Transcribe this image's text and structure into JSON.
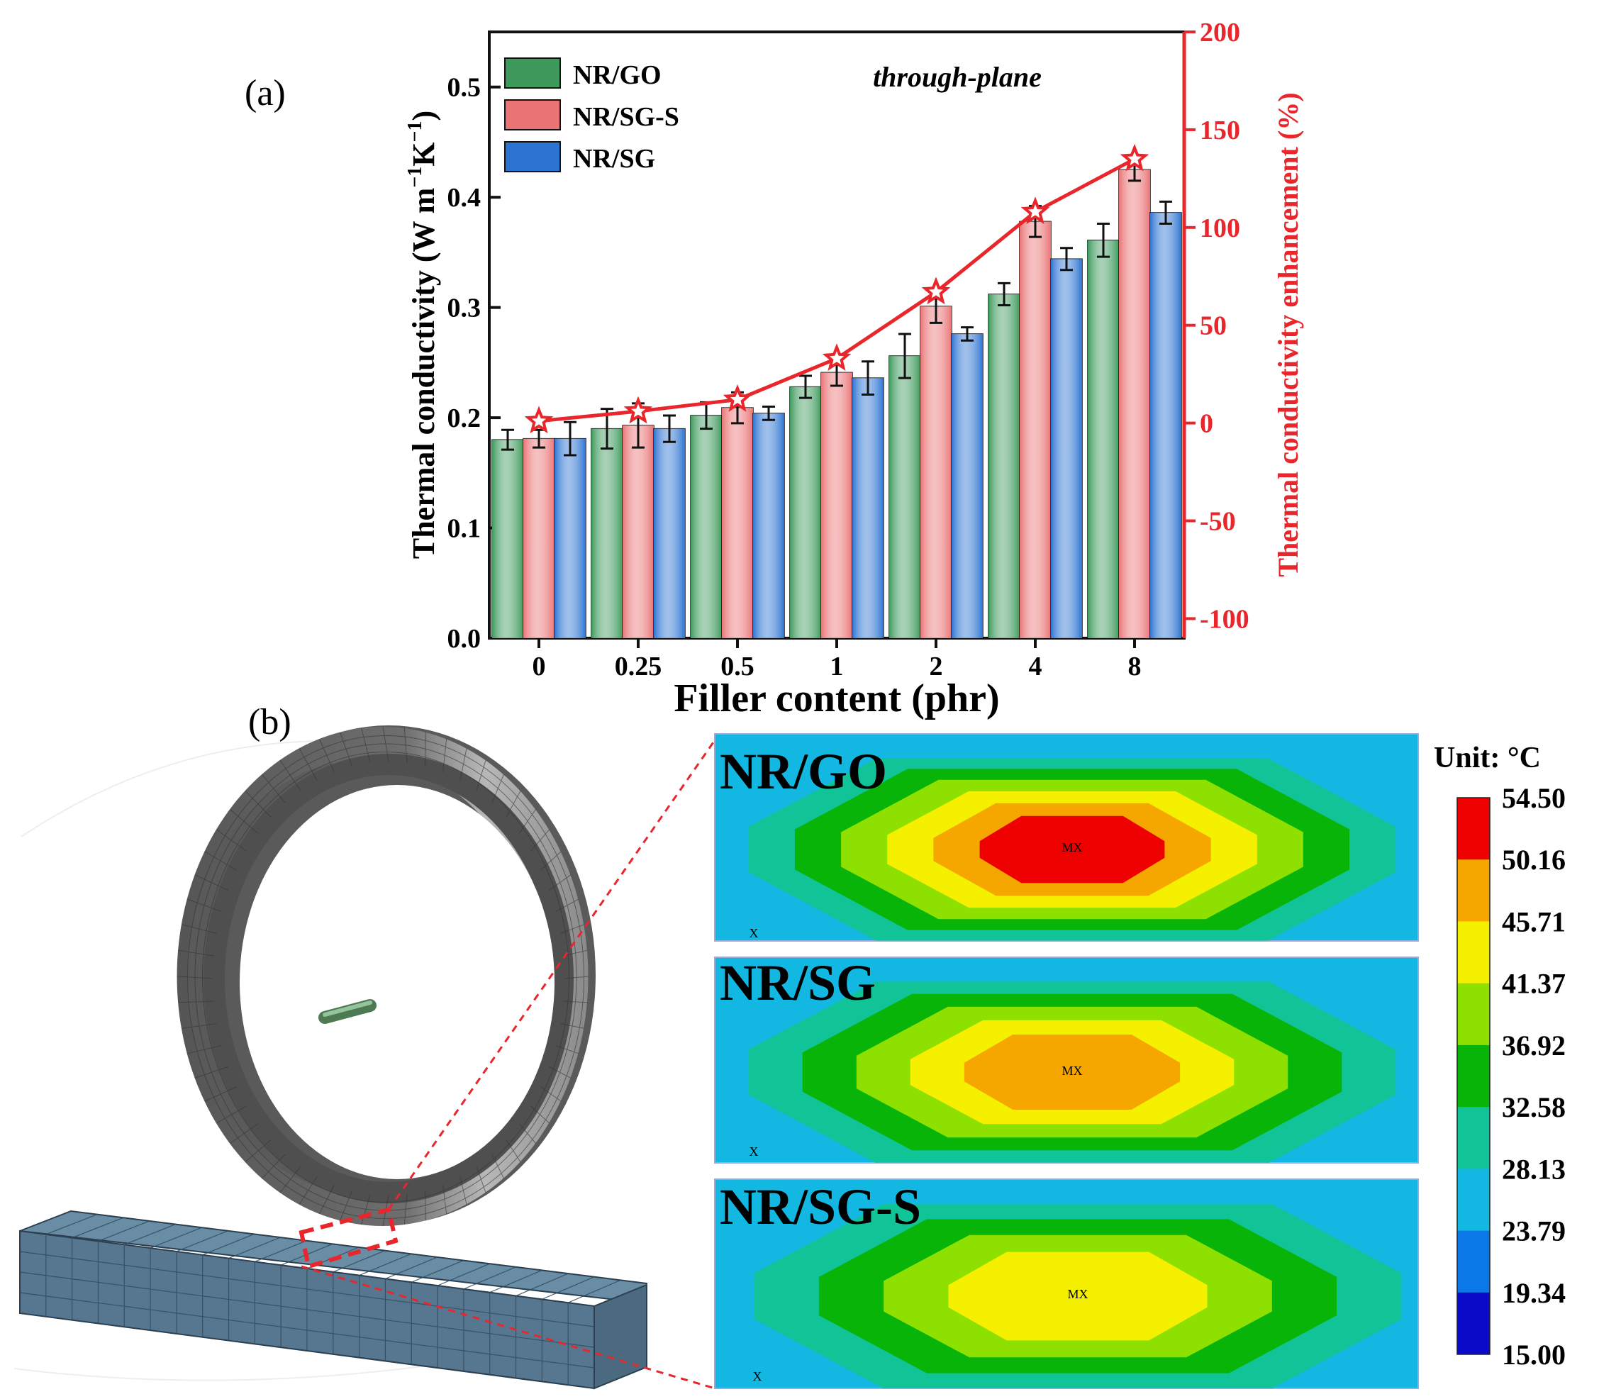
{
  "chart_data": [
    {
      "panel": "(a)",
      "type": "bar",
      "title": "through-plane",
      "xlabel": "Filler content (phr)",
      "ylabel": "Thermal conductivity (W m",
      "ylabel_sup1": "−1",
      "ylabel_mid": "K",
      "ylabel_sup2": "−1",
      "ylabel_end": ")",
      "y2label": "Thermal conductivity enhancement (%)",
      "categories": [
        "0",
        "0.25",
        "0.5",
        "1",
        "2",
        "4",
        "8"
      ],
      "ylim": [
        0.0,
        0.55
      ],
      "yticks": [
        "0.0",
        "0.1",
        "0.2",
        "0.3",
        "0.4",
        "0.5"
      ],
      "y2lim": [
        -110,
        200
      ],
      "y2ticks": [
        "-100",
        "-50",
        "0",
        "50",
        "100",
        "150",
        "200"
      ],
      "legend_position": "top-left",
      "series": [
        {
          "name": "NR/GO",
          "color": "#3e9a5c",
          "values": [
            0.18,
            0.19,
            0.202,
            0.228,
            0.256,
            0.312,
            0.361
          ],
          "errors": [
            0.009,
            0.018,
            0.012,
            0.01,
            0.02,
            0.01,
            0.015
          ]
        },
        {
          "name": "NR/SG-S",
          "color": "#ea7475",
          "values": [
            0.181,
            0.193,
            0.209,
            0.241,
            0.301,
            0.378,
            0.425
          ],
          "errors": [
            0.008,
            0.02,
            0.014,
            0.012,
            0.015,
            0.014,
            0.01
          ]
        },
        {
          "name": "NR/SG",
          "color": "#2c73d2",
          "values": [
            0.181,
            0.19,
            0.204,
            0.236,
            0.276,
            0.344,
            0.386
          ],
          "errors": [
            0.015,
            0.012,
            0.006,
            0.015,
            0.006,
            0.01,
            0.01
          ]
        }
      ],
      "line_series": {
        "name": "Thermal conductivity enhancement",
        "axis": "right",
        "color": "#e8262b",
        "marker": "star",
        "values": [
          1,
          6,
          12,
          33,
          67,
          108,
          135
        ]
      }
    },
    {
      "panel": "(b)",
      "type": "heatmap",
      "unit_label": "Unit: °C",
      "colorbar_levels": [
        "54.50",
        "50.16",
        "45.71",
        "41.37",
        "36.92",
        "32.58",
        "28.13",
        "23.79",
        "19.34",
        "15.00"
      ],
      "colorbar_colors": [
        "#ee0000",
        "#f5a700",
        "#f5ef00",
        "#8ee000",
        "#08b408",
        "#11c497",
        "#13b8e2",
        "#0a78e6",
        "#0a0ac8"
      ],
      "contour_colors": [
        "#13b8e2",
        "#11c497",
        "#08b408",
        "#8ee000",
        "#f5ef00",
        "#f5a700",
        "#ee0000"
      ],
      "maps": [
        {
          "label": "NR/GO",
          "marker": "MX",
          "min_marker": "X",
          "levels": 7
        },
        {
          "label": "NR/SG",
          "marker": "MX",
          "min_marker": "X",
          "levels": 6
        },
        {
          "label": "NR/SG-S",
          "marker": "MX",
          "min_marker": "X",
          "levels": 5
        }
      ]
    }
  ]
}
